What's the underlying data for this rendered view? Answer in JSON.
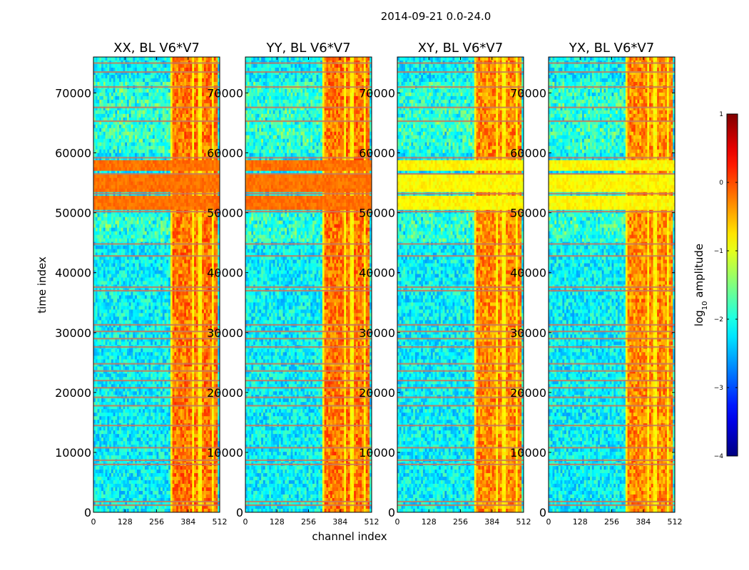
{
  "suptitle": "2014-09-21 0.0-24.0",
  "chart_data": {
    "type": "heatmap",
    "xlabel": "channel index",
    "ylabel": "time index",
    "xlim": [
      0,
      512
    ],
    "ylim": [
      0,
      76000
    ],
    "x_ticks": [
      0,
      128,
      256,
      384,
      512
    ],
    "x_tick_labels": [
      "0",
      "128",
      "256",
      "384",
      "512"
    ],
    "y_ticks": [
      0,
      10000,
      20000,
      30000,
      40000,
      50000,
      60000,
      70000
    ],
    "y_tick_labels": [
      "0",
      "10000",
      "20000",
      "30000",
      "40000",
      "50000",
      "60000",
      "70000"
    ],
    "panels": [
      {
        "title": "XX, BL V6*V7",
        "bright_bands": true
      },
      {
        "title": "YY, BL V6*V7",
        "bright_bands": true
      },
      {
        "title": "XY, BL V6*V7",
        "bright_bands": false
      },
      {
        "title": "YX, BL V6*V7",
        "bright_bands": false
      }
    ],
    "colorbar": {
      "label_prefix": "log",
      "label_subscript": "10",
      "label_suffix": " amplitude",
      "min": -4,
      "max": 1,
      "ticks": [
        1,
        0,
        -1,
        -2,
        -3,
        -4
      ],
      "tick_labels": [
        "1",
        "0",
        "−1",
        "−2",
        "−3",
        "−4"
      ],
      "colormap": "jet"
    },
    "time_bands": [
      [
        50500,
        52800
      ],
      [
        53500,
        56300
      ],
      [
        56800,
        59000
      ]
    ],
    "rfi_channels": [
      [
        318,
        350
      ],
      [
        355,
        372
      ],
      [
        380,
        400
      ],
      [
        408,
        425
      ],
      [
        440,
        460
      ],
      [
        465,
        478
      ],
      [
        488,
        500
      ]
    ],
    "flag_rows": [
      1200,
      1800,
      8000,
      8700,
      10800,
      14500,
      17800,
      19200,
      20800,
      22000,
      23600,
      24800,
      27600,
      29000,
      30200,
      31300,
      37000,
      37600,
      42800,
      44800,
      50200,
      53200,
      56500,
      59200,
      65300,
      67600,
      71000,
      73500,
      75000
    ]
  }
}
